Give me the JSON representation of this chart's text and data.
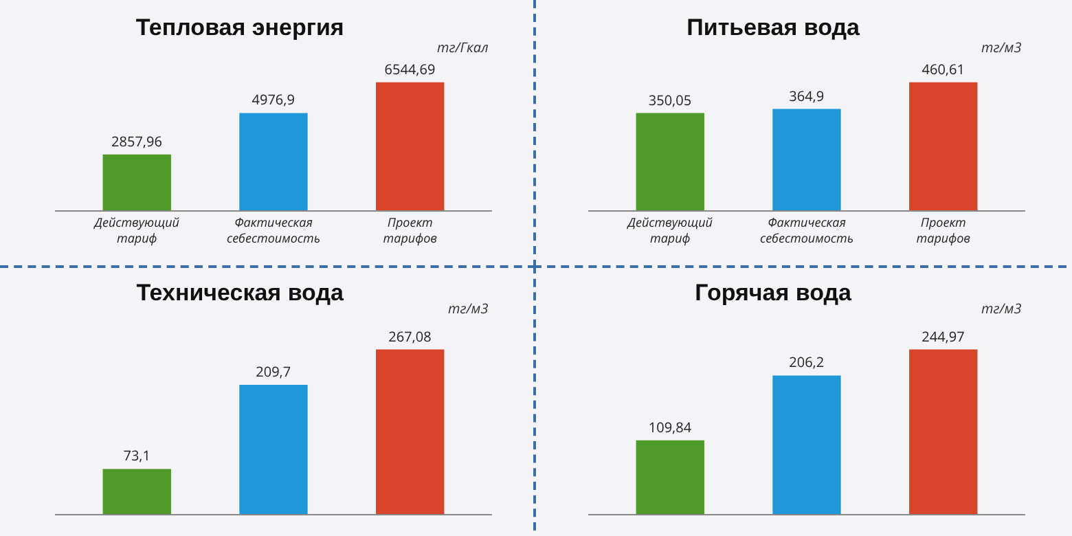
{
  "chart_data": [
    {
      "type": "bar",
      "title": "Тепловая энергия",
      "annotations": [
        "тг/Гкал"
      ],
      "categories": [
        "Действующий тариф",
        "Фактическая себестоимость",
        "Проект тарифов"
      ],
      "values": [
        2857.96,
        4976.9,
        6544.69
      ],
      "value_labels": [
        "2857,96",
        "4976,9",
        "6544,69"
      ],
      "colors": [
        "#4f9a2a",
        "#1f97d8",
        "#d8452a"
      ]
    },
    {
      "type": "bar",
      "title": "Питьевая вода",
      "annotations": [
        "тг/м3"
      ],
      "categories": [
        "Действующий тариф",
        "Фактическая себестоимость",
        "Проект тарифов"
      ],
      "values": [
        350.05,
        364.9,
        460.61
      ],
      "value_labels": [
        "350,05",
        "364,9",
        "460,61"
      ],
      "colors": [
        "#4f9a2a",
        "#1f97d8",
        "#d8452a"
      ]
    },
    {
      "type": "bar",
      "title": "Техническая вода",
      "annotations": [
        "тг/м3"
      ],
      "categories": [
        null,
        null,
        null
      ],
      "values": [
        73.1,
        209.7,
        267.08
      ],
      "value_labels": [
        "73,1",
        "209,7",
        "267,08"
      ],
      "colors": [
        "#4f9a2a",
        "#1f97d8",
        "#d8452a"
      ]
    },
    {
      "type": "bar",
      "title": "Горячая вода",
      "annotations": [
        "тг/м3"
      ],
      "categories": [
        null,
        null,
        null
      ],
      "values": [
        109.84,
        206.2,
        244.97
      ],
      "value_labels": [
        "109,84",
        "206,2",
        "244,97"
      ],
      "colors": [
        "#4f9a2a",
        "#1f97d8",
        "#d8452a"
      ]
    }
  ]
}
